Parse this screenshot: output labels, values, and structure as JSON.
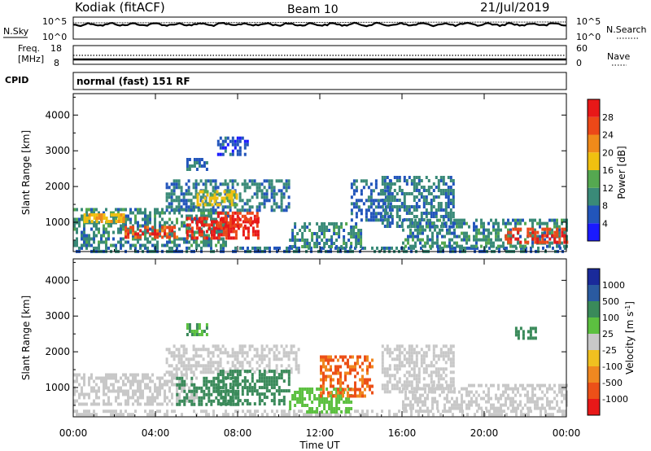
{
  "header": {
    "station": "Kodiak (fitACF)",
    "beam": "Beam 10",
    "date": "21/Jul/2019"
  },
  "top_panels": {
    "nsky_label": "N.Sky",
    "nsearch_label": "N.Search",
    "nsky_ticks": [
      "10^5",
      "10^0"
    ],
    "nsearch_ticks": [
      "10^5",
      "10^0"
    ],
    "freq_label_1": "Freq.",
    "freq_label_2": "[MHz]",
    "freq_ticks": [
      "18",
      "8"
    ],
    "nave_label": "Nave",
    "nave_ticks": [
      "60",
      "0"
    ],
    "cpid_label": "CPID",
    "cpid_text": "normal (fast) 151 RF"
  },
  "chart_data": [
    {
      "type": "heatmap",
      "title": "",
      "xlabel": "Time UT",
      "ylabel": "Slant Range [km]",
      "colorbar_label": "Power [dB]",
      "x_ticks": [
        "00:00",
        "04:00",
        "08:00",
        "12:00",
        "16:00",
        "20:00",
        "00:00"
      ],
      "xlim_hours": [
        0,
        24
      ],
      "y_ticks": [
        1000,
        2000,
        3000,
        4000
      ],
      "ylim": [
        180,
        4600
      ],
      "colorbar_ticks": [
        "4",
        "8",
        "12",
        "16",
        "20",
        "24",
        "28"
      ],
      "colorbar_range": [
        0,
        32
      ],
      "colors": [
        "#1a1aff",
        "#2255bb",
        "#3a8a78",
        "#55a850",
        "#f0c010",
        "#f08a1a",
        "#ec4818",
        "#e81818"
      ],
      "regions": [
        {
          "t0": 0.0,
          "t1": 24.0,
          "r0": 200,
          "r1": 320,
          "value": 8
        },
        {
          "t0": 0.0,
          "t1": 7.5,
          "r0": 350,
          "r1": 1400,
          "value": 10
        },
        {
          "t0": 0.5,
          "t1": 2.5,
          "r0": 1000,
          "r1": 1250,
          "value": 20
        },
        {
          "t0": 2.5,
          "t1": 5.0,
          "r0": 550,
          "r1": 900,
          "value": 26
        },
        {
          "t0": 5.5,
          "t1": 9.0,
          "r0": 600,
          "r1": 1150,
          "value": 29
        },
        {
          "t0": 7.0,
          "t1": 9.0,
          "r0": 900,
          "r1": 1300,
          "value": 27
        },
        {
          "t0": 4.5,
          "t1": 10.5,
          "r0": 1300,
          "r1": 2200,
          "value": 9
        },
        {
          "t0": 6.0,
          "t1": 8.0,
          "r0": 1500,
          "r1": 1900,
          "value": 17
        },
        {
          "t0": 5.5,
          "t1": 6.5,
          "r0": 2500,
          "r1": 2800,
          "value": 7
        },
        {
          "t0": 7.0,
          "t1": 8.5,
          "r0": 2900,
          "r1": 3400,
          "value": 6
        },
        {
          "t0": 10.5,
          "t1": 14.0,
          "r0": 350,
          "r1": 1000,
          "value": 10
        },
        {
          "t0": 13.5,
          "t1": 15.5,
          "r0": 1100,
          "r1": 2200,
          "value": 7
        },
        {
          "t0": 15.0,
          "t1": 18.5,
          "r0": 900,
          "r1": 2300,
          "value": 9
        },
        {
          "t0": 16.0,
          "t1": 24.0,
          "r0": 350,
          "r1": 1100,
          "value": 10
        },
        {
          "t0": 21.0,
          "t1": 24.0,
          "r0": 450,
          "r1": 850,
          "value": 27
        }
      ]
    },
    {
      "type": "heatmap",
      "title": "",
      "xlabel": "Time UT",
      "ylabel": "Slant Range [km]",
      "colorbar_label": "Velocity [m s^-1]",
      "x_ticks": [
        "00:00",
        "04:00",
        "08:00",
        "12:00",
        "16:00",
        "20:00",
        "00:00"
      ],
      "xlim_hours": [
        0,
        24
      ],
      "y_ticks": [
        1000,
        2000,
        3000,
        4000
      ],
      "ylim": [
        180,
        4600
      ],
      "colorbar_ticks": [
        "1000",
        "500",
        "100",
        "25",
        "-25",
        "-100",
        "-500",
        "-1000"
      ],
      "colors": [
        "#1a2a9a",
        "#2a5aa0",
        "#3a8a5a",
        "#5cc040",
        "#c8c8c8",
        "#f0c020",
        "#f08820",
        "#ec5018",
        "#e81818"
      ],
      "regions": [
        {
          "t0": 0.0,
          "t1": 24.0,
          "r0": 200,
          "r1": 380,
          "value": 0
        },
        {
          "t0": 0.0,
          "t1": 6.0,
          "r0": 500,
          "r1": 1400,
          "value": 0
        },
        {
          "t0": 4.5,
          "t1": 11.0,
          "r0": 1400,
          "r1": 2200,
          "value": 10
        },
        {
          "t0": 5.0,
          "t1": 8.0,
          "r0": 500,
          "r1": 1300,
          "value": 80
        },
        {
          "t0": 7.0,
          "t1": 10.5,
          "r0": 500,
          "r1": 1500,
          "value": 200
        },
        {
          "t0": 10.5,
          "t1": 13.5,
          "r0": 300,
          "r1": 1000,
          "value": 50
        },
        {
          "t0": 12.0,
          "t1": 14.5,
          "r0": 800,
          "r1": 1900,
          "value": -300
        },
        {
          "t0": 15.0,
          "t1": 18.5,
          "r0": 900,
          "r1": 2200,
          "value": 0
        },
        {
          "t0": 16.0,
          "t1": 24.0,
          "r0": 400,
          "r1": 1100,
          "value": 0
        },
        {
          "t0": 5.5,
          "t1": 6.5,
          "r0": 2500,
          "r1": 2800,
          "value": 60
        },
        {
          "t0": 21.5,
          "t1": 22.5,
          "r0": 2400,
          "r1": 2700,
          "value": 80
        }
      ]
    }
  ]
}
